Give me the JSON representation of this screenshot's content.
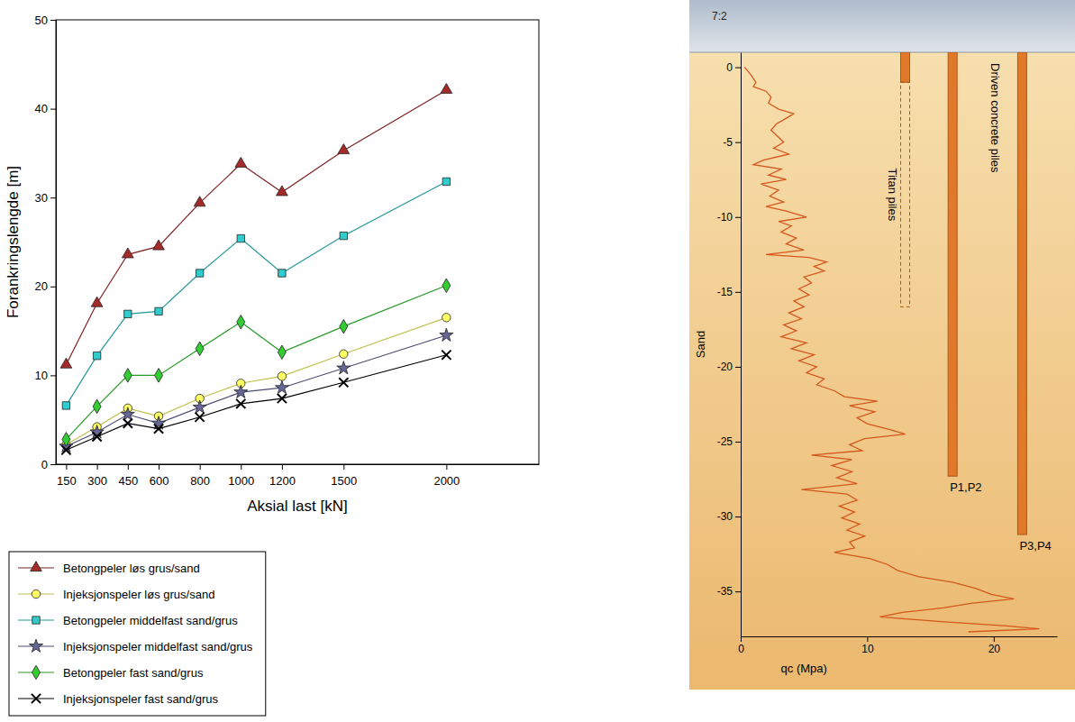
{
  "chart_data": [
    {
      "type": "line",
      "x_label": "Aksial last [kN]",
      "y_label": "Forankringslengde [m]",
      "x": [
        150,
        300,
        450,
        600,
        800,
        1000,
        1200,
        1500,
        2000
      ],
      "xlim": [
        100,
        2450
      ],
      "xticks": [
        150,
        300,
        450,
        600,
        800,
        1000,
        1200,
        1500,
        2000
      ],
      "ylim": [
        0,
        50
      ],
      "yticks": [
        0,
        10,
        20,
        30,
        40,
        50
      ],
      "grid": false,
      "legend": "bottom",
      "series": [
        {
          "name": "Betongpeler løs grus/sand",
          "color": "#a52a2a",
          "marker": "triangle",
          "values": [
            11.2,
            18.1,
            23.6,
            24.5,
            29.4,
            33.8,
            30.6,
            35.3,
            42.1
          ]
        },
        {
          "name": "Injeksjonspeler løs grus/sand",
          "color": "#ffff66",
          "marker": "circle",
          "values": [
            2.2,
            4.2,
            6.3,
            5.4,
            7.4,
            9.1,
            9.9,
            12.4,
            16.5
          ]
        },
        {
          "name": "Betongpeler middelfast sand/grus",
          "color": "#33cccc",
          "marker": "square",
          "values": [
            6.6,
            12.2,
            16.9,
            17.2,
            21.5,
            25.4,
            21.5,
            25.7,
            31.8
          ]
        },
        {
          "name": "Injeksjonspeler middelfast sand/grus",
          "color": "#666699",
          "marker": "star",
          "values": [
            2.0,
            3.6,
            5.6,
            4.6,
            6.4,
            8.1,
            8.6,
            10.8,
            14.5
          ]
        },
        {
          "name": "Betongpeler fast sand/grus",
          "color": "#33cc33",
          "marker": "diamond",
          "values": [
            2.8,
            6.5,
            10.0,
            10.0,
            13.0,
            16.0,
            12.6,
            15.5,
            20.1
          ]
        },
        {
          "name": "Injeksjonspeler fast sand/grus",
          "color": "#000000",
          "marker": "x",
          "values": [
            1.6,
            3.1,
            4.6,
            4.0,
            5.3,
            6.8,
            7.4,
            9.2,
            12.3
          ]
        }
      ]
    },
    {
      "type": "line",
      "x_label": "qc (Mpa)",
      "y_label": "Sand",
      "xlim": [
        0,
        25
      ],
      "xticks": [
        0,
        10,
        20
      ],
      "ylim": [
        1,
        -38
      ],
      "yticks": [
        0,
        -5,
        -10,
        -15,
        -20,
        -25,
        -30,
        -35
      ],
      "grid": false,
      "annotations": [
        "7:2",
        "Driven concrete piles"
      ],
      "piles": [
        {
          "label": "Titan piles",
          "solid_bottom": -1,
          "bottom": -16
        },
        {
          "label": "P1,P2",
          "bottom": -27.3
        },
        {
          "label": "P3,P4",
          "bottom": -31.2
        }
      ],
      "series": [
        {
          "color": "#d4581e",
          "x": [
            0.3,
            0.8,
            1.2,
            1.0,
            2.0,
            2.4,
            2.2,
            3.0,
            4.2,
            3.6,
            2.8,
            2.4,
            2.9,
            3.4,
            2.6,
            3.8,
            1.8,
            1.0,
            3.2,
            2.2,
            3.6,
            1.6,
            3.0,
            2.3,
            3.4,
            2.0,
            3.6,
            5.2,
            3.0,
            4.0,
            3.2,
            4.4,
            3.6,
            5.0,
            2.0,
            5.4,
            6.8,
            5.8,
            6.6,
            5.0,
            5.6,
            4.6,
            5.4,
            4.2,
            5.0,
            3.8,
            4.8,
            3.4,
            4.4,
            3.2,
            5.2,
            4.0,
            5.8,
            4.6,
            6.0,
            5.2,
            6.6,
            6.0,
            7.4,
            8.2,
            10.8,
            8.6,
            10.6,
            9.2,
            10.0,
            11.8,
            13.0,
            9.8,
            8.6,
            9.6,
            5.6,
            8.8,
            7.2,
            8.8,
            7.6,
            9.2,
            4.8,
            8.4,
            9.2,
            7.8,
            9.0,
            8.0,
            9.4,
            8.4,
            9.8,
            8.6,
            9.0,
            7.4,
            10.2,
            11.6,
            12.4,
            14.0,
            16.8,
            18.6,
            19.8,
            21.6,
            18.2,
            16.0,
            12.8,
            11.0,
            15.6,
            21.0,
            23.6,
            18.0
          ],
          "values": [
            0,
            -0.5,
            -1,
            -1.3,
            -1.6,
            -2,
            -2.4,
            -2.8,
            -3.1,
            -3.4,
            -3.8,
            -4.2,
            -4.6,
            -5,
            -5.4,
            -5.8,
            -6.2,
            -6.5,
            -6.8,
            -7.2,
            -7.5,
            -7.8,
            -8.2,
            -8.6,
            -9,
            -9.3,
            -9.6,
            -10,
            -10.3,
            -10.6,
            -11,
            -11.4,
            -11.8,
            -12.2,
            -12.5,
            -12.7,
            -13,
            -13.3,
            -13.6,
            -14,
            -14.4,
            -14.8,
            -15.2,
            -15.6,
            -16,
            -16.4,
            -16.8,
            -17.2,
            -17.6,
            -18,
            -18.4,
            -18.8,
            -19.2,
            -19.6,
            -20,
            -20.4,
            -20.8,
            -21.2,
            -21.6,
            -22,
            -22.3,
            -22.6,
            -23,
            -23.4,
            -23.8,
            -24.2,
            -24.5,
            -24.8,
            -25.2,
            -25.6,
            -25.9,
            -26.2,
            -26.6,
            -27,
            -27.4,
            -27.8,
            -28.2,
            -28.5,
            -28.9,
            -29.3,
            -29.7,
            -30.1,
            -30.5,
            -30.9,
            -31.3,
            -31.7,
            -32.1,
            -32.4,
            -32.8,
            -33.2,
            -33.6,
            -34,
            -34.4,
            -34.8,
            -35.2,
            -35.5,
            -35.8,
            -36.1,
            -36.4,
            -36.7,
            -37,
            -37.3,
            -37.5,
            -37.7
          ]
        }
      ]
    }
  ]
}
